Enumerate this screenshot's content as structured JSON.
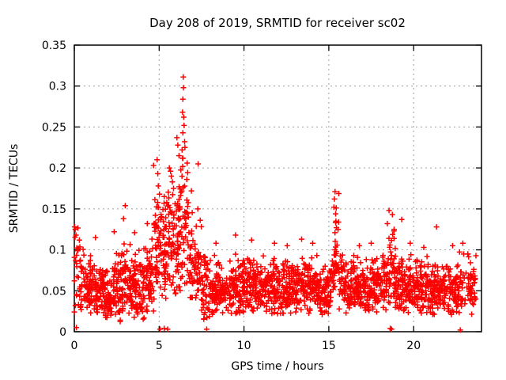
{
  "page": {
    "background": "#ffffff"
  },
  "chart_data": {
    "type": "scatter",
    "title": "Day 208 of 2019, SRMTID for receiver sc02",
    "xlabel": "GPS time / hours",
    "ylabel": "SRMTID / TECUs",
    "xlim": [
      0,
      24
    ],
    "ylim": [
      0,
      0.35
    ],
    "xticks": {
      "values": [
        0,
        5,
        10,
        15,
        20
      ],
      "labels": [
        "0",
        "5",
        "10",
        "15",
        "20"
      ]
    },
    "yticks": {
      "values": [
        0,
        0.05,
        0.1,
        0.15,
        0.2,
        0.25,
        0.3,
        0.35
      ],
      "labels": [
        "0",
        "0.05",
        "0.1",
        "0.15",
        "0.2",
        "0.25",
        "0.3",
        "0.35"
      ]
    },
    "grid": {
      "show": true,
      "color": "#9e9e9e",
      "dash": "2,4"
    },
    "legend": {
      "show": false
    },
    "axis_color": "#000000",
    "marker": {
      "shape": "plus",
      "color": "#ff0000",
      "size": 7,
      "stroke_width": 1.5
    },
    "series": [
      {
        "name": "SRMTID",
        "color": "#ff0000",
        "seed": 20190208,
        "peaks": [
          {
            "x": 6.42,
            "y": 0.311,
            "note": "main TID peak"
          },
          {
            "x": 15.37,
            "y": 0.171,
            "note": "secondary peak"
          }
        ],
        "baseline_range": [
          0.03,
          0.1
        ],
        "clusters": [
          [
            0.0,
            0.3,
            20,
            0.07,
            0.028,
            0.02,
            0.128
          ],
          [
            0.3,
            0.8,
            45,
            0.057,
            0.02,
            0.022,
            0.115
          ],
          [
            0.8,
            1.3,
            55,
            0.05,
            0.018,
            0.02,
            0.11
          ],
          [
            1.3,
            1.8,
            55,
            0.046,
            0.016,
            0.018,
            0.095
          ],
          [
            1.8,
            2.3,
            55,
            0.045,
            0.018,
            0.012,
            0.1
          ],
          [
            2.3,
            2.8,
            55,
            0.05,
            0.02,
            0.012,
            0.115
          ],
          [
            2.8,
            3.3,
            55,
            0.055,
            0.022,
            0.015,
            0.135
          ],
          [
            3.3,
            3.8,
            55,
            0.05,
            0.02,
            0.015,
            0.12
          ],
          [
            3.8,
            4.3,
            55,
            0.055,
            0.022,
            0.015,
            0.125
          ],
          [
            4.3,
            4.7,
            40,
            0.062,
            0.025,
            0.02,
            0.14
          ],
          [
            4.7,
            5.1,
            48,
            0.105,
            0.035,
            0.035,
            0.205
          ],
          [
            5.1,
            5.5,
            45,
            0.1,
            0.033,
            0.03,
            0.18
          ],
          [
            5.5,
            5.9,
            45,
            0.112,
            0.038,
            0.045,
            0.198
          ],
          [
            5.9,
            6.2,
            38,
            0.105,
            0.035,
            0.045,
            0.22
          ],
          [
            6.2,
            6.7,
            55,
            0.13,
            0.05,
            0.05,
            0.31
          ],
          [
            6.7,
            7.0,
            30,
            0.095,
            0.03,
            0.04,
            0.168
          ],
          [
            7.0,
            7.5,
            45,
            0.072,
            0.026,
            0.03,
            0.138
          ],
          [
            7.5,
            8.0,
            45,
            0.05,
            0.02,
            0.015,
            0.1
          ],
          [
            8.0,
            9.0,
            100,
            0.05,
            0.016,
            0.02,
            0.1
          ],
          [
            9.0,
            10.0,
            100,
            0.052,
            0.017,
            0.022,
            0.105
          ],
          [
            10.0,
            11.0,
            100,
            0.055,
            0.017,
            0.025,
            0.11
          ],
          [
            11.0,
            12.0,
            100,
            0.052,
            0.016,
            0.022,
            0.105
          ],
          [
            12.0,
            13.0,
            100,
            0.053,
            0.017,
            0.022,
            0.108
          ],
          [
            13.0,
            14.0,
            100,
            0.055,
            0.018,
            0.022,
            0.112
          ],
          [
            14.0,
            15.0,
            100,
            0.05,
            0.017,
            0.02,
            0.105
          ],
          [
            15.0,
            15.3,
            26,
            0.06,
            0.02,
            0.03,
            0.11
          ],
          [
            15.3,
            15.6,
            28,
            0.1,
            0.033,
            0.045,
            0.172
          ],
          [
            15.6,
            16.0,
            38,
            0.055,
            0.018,
            0.025,
            0.1
          ],
          [
            16.0,
            17.0,
            100,
            0.052,
            0.016,
            0.022,
            0.105
          ],
          [
            17.0,
            18.0,
            100,
            0.053,
            0.017,
            0.022,
            0.108
          ],
          [
            18.0,
            18.4,
            38,
            0.055,
            0.018,
            0.025,
            0.11
          ],
          [
            18.4,
            19.0,
            60,
            0.065,
            0.025,
            0.025,
            0.145
          ],
          [
            19.0,
            20.0,
            100,
            0.053,
            0.017,
            0.022,
            0.11
          ],
          [
            20.0,
            21.0,
            100,
            0.05,
            0.016,
            0.02,
            0.105
          ],
          [
            21.0,
            22.0,
            100,
            0.05,
            0.017,
            0.02,
            0.11
          ],
          [
            22.0,
            22.6,
            58,
            0.05,
            0.017,
            0.02,
            0.105
          ],
          [
            22.6,
            23.7,
            80,
            0.055,
            0.02,
            0.02,
            0.112
          ]
        ],
        "notable_points": [
          [
            0.05,
            0.125
          ],
          [
            0.1,
            0.118
          ],
          [
            0.12,
            0.005
          ],
          [
            0.3,
            0.112
          ],
          [
            1.25,
            0.115
          ],
          [
            2.35,
            0.122
          ],
          [
            2.9,
            0.138
          ],
          [
            3.0,
            0.154
          ],
          [
            3.55,
            0.121
          ],
          [
            4.3,
            0.132
          ],
          [
            4.67,
            0.203
          ],
          [
            4.88,
            0.21
          ],
          [
            4.92,
            0.193
          ],
          [
            4.95,
            0.178
          ],
          [
            5.02,
            0.168
          ],
          [
            5.05,
            0.003
          ],
          [
            5.3,
            0.004
          ],
          [
            5.5,
            0.003
          ],
          [
            5.3,
            0.165
          ],
          [
            5.45,
            0.158
          ],
          [
            5.6,
            0.2
          ],
          [
            5.67,
            0.196
          ],
          [
            5.72,
            0.19
          ],
          [
            5.78,
            0.183
          ],
          [
            5.85,
            0.175
          ],
          [
            6.05,
            0.237
          ],
          [
            6.1,
            0.228
          ],
          [
            6.17,
            0.215
          ],
          [
            6.35,
            0.222
          ],
          [
            6.38,
            0.268
          ],
          [
            6.4,
            0.284
          ],
          [
            6.4,
            0.243
          ],
          [
            6.42,
            0.311
          ],
          [
            6.43,
            0.298
          ],
          [
            6.45,
            0.262
          ],
          [
            6.47,
            0.252
          ],
          [
            6.5,
            0.232
          ],
          [
            6.52,
            0.225
          ],
          [
            6.9,
            0.172
          ],
          [
            7.3,
            0.205
          ],
          [
            7.28,
            0.15
          ],
          [
            7.42,
            0.136
          ],
          [
            7.8,
            0.003
          ],
          [
            8.35,
            0.108
          ],
          [
            9.5,
            0.118
          ],
          [
            10.45,
            0.112
          ],
          [
            11.8,
            0.108
          ],
          [
            12.55,
            0.105
          ],
          [
            13.4,
            0.113
          ],
          [
            14.05,
            0.108
          ],
          [
            15.3,
            0.152
          ],
          [
            15.33,
            0.162
          ],
          [
            15.37,
            0.171
          ],
          [
            15.4,
            0.144
          ],
          [
            15.42,
            0.135
          ],
          [
            15.45,
            0.127
          ],
          [
            16.8,
            0.105
          ],
          [
            17.5,
            0.108
          ],
          [
            18.45,
            0.132
          ],
          [
            18.55,
            0.148
          ],
          [
            18.62,
            0.004
          ],
          [
            18.7,
            0.003
          ],
          [
            18.75,
            0.143
          ],
          [
            18.85,
            0.125
          ],
          [
            19.3,
            0.137
          ],
          [
            19.8,
            0.108
          ],
          [
            20.6,
            0.103
          ],
          [
            21.35,
            0.128
          ],
          [
            22.3,
            0.105
          ],
          [
            22.75,
            0.002
          ],
          [
            22.9,
            0.108
          ],
          [
            23.2,
            0.095
          ]
        ]
      }
    ]
  }
}
